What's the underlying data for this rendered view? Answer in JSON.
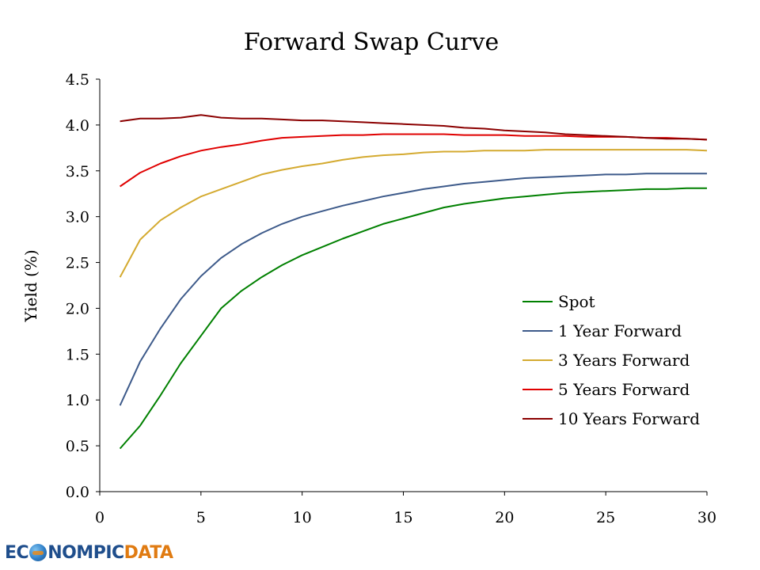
{
  "chart_data": {
    "type": "line",
    "title": "Forward Swap Curve",
    "xlabel": "",
    "ylabel": "Yield (%)",
    "xlim": [
      0,
      30
    ],
    "ylim": [
      0,
      4.5
    ],
    "xticks": [
      "0",
      "5",
      "10",
      "15",
      "20",
      "25",
      "30"
    ],
    "xtick_values": [
      0,
      5,
      10,
      15,
      20,
      25,
      30
    ],
    "yticks": [
      "0.0",
      "0.5",
      "1.0",
      "1.5",
      "2.0",
      "2.5",
      "3.0",
      "3.5",
      "4.0",
      "4.5"
    ],
    "ytick_values": [
      0,
      0.5,
      1.0,
      1.5,
      2.0,
      2.5,
      3.0,
      3.5,
      4.0,
      4.5
    ],
    "grid": false,
    "legend_position": "right",
    "x": [
      1,
      2,
      3,
      4,
      5,
      6,
      7,
      8,
      9,
      10,
      11,
      12,
      13,
      14,
      15,
      16,
      17,
      18,
      19,
      20,
      21,
      22,
      23,
      24,
      25,
      26,
      27,
      28,
      29,
      30
    ],
    "series": [
      {
        "name": "Spot",
        "color": "#008000",
        "values": [
          0.47,
          0.72,
          1.05,
          1.4,
          1.7,
          2.0,
          2.19,
          2.34,
          2.47,
          2.58,
          2.67,
          2.76,
          2.84,
          2.92,
          2.98,
          3.04,
          3.1,
          3.14,
          3.17,
          3.2,
          3.22,
          3.24,
          3.26,
          3.27,
          3.28,
          3.29,
          3.3,
          3.3,
          3.31,
          3.31
        ]
      },
      {
        "name": "1 Year Forward",
        "color": "#3d5a8a",
        "values": [
          0.94,
          1.42,
          1.78,
          2.1,
          2.35,
          2.55,
          2.7,
          2.82,
          2.92,
          3.0,
          3.06,
          3.12,
          3.17,
          3.22,
          3.26,
          3.3,
          3.33,
          3.36,
          3.38,
          3.4,
          3.42,
          3.43,
          3.44,
          3.45,
          3.46,
          3.46,
          3.47,
          3.47,
          3.47,
          3.47
        ]
      },
      {
        "name": "3 Years Forward",
        "color": "#d4aa30",
        "values": [
          2.34,
          2.75,
          2.96,
          3.1,
          3.22,
          3.3,
          3.38,
          3.46,
          3.51,
          3.55,
          3.58,
          3.62,
          3.65,
          3.67,
          3.68,
          3.7,
          3.71,
          3.71,
          3.72,
          3.72,
          3.72,
          3.73,
          3.73,
          3.73,
          3.73,
          3.73,
          3.73,
          3.73,
          3.73,
          3.72
        ]
      },
      {
        "name": "5 Years Forward",
        "color": "#e00000",
        "values": [
          3.33,
          3.48,
          3.58,
          3.66,
          3.72,
          3.76,
          3.79,
          3.83,
          3.86,
          3.87,
          3.88,
          3.89,
          3.89,
          3.9,
          3.9,
          3.9,
          3.9,
          3.89,
          3.89,
          3.89,
          3.88,
          3.88,
          3.88,
          3.87,
          3.87,
          3.87,
          3.86,
          3.86,
          3.85,
          3.84
        ]
      },
      {
        "name": "10 Years Forward",
        "color": "#8b0000",
        "values": [
          4.04,
          4.07,
          4.07,
          4.08,
          4.11,
          4.08,
          4.07,
          4.07,
          4.06,
          4.05,
          4.05,
          4.04,
          4.03,
          4.02,
          4.01,
          4.0,
          3.99,
          3.97,
          3.96,
          3.94,
          3.93,
          3.92,
          3.9,
          3.89,
          3.88,
          3.87,
          3.86,
          3.85,
          3.85,
          3.84
        ]
      }
    ]
  },
  "logo": {
    "left": "EC",
    "mid": "NOMPIC",
    "right": "DATA"
  }
}
